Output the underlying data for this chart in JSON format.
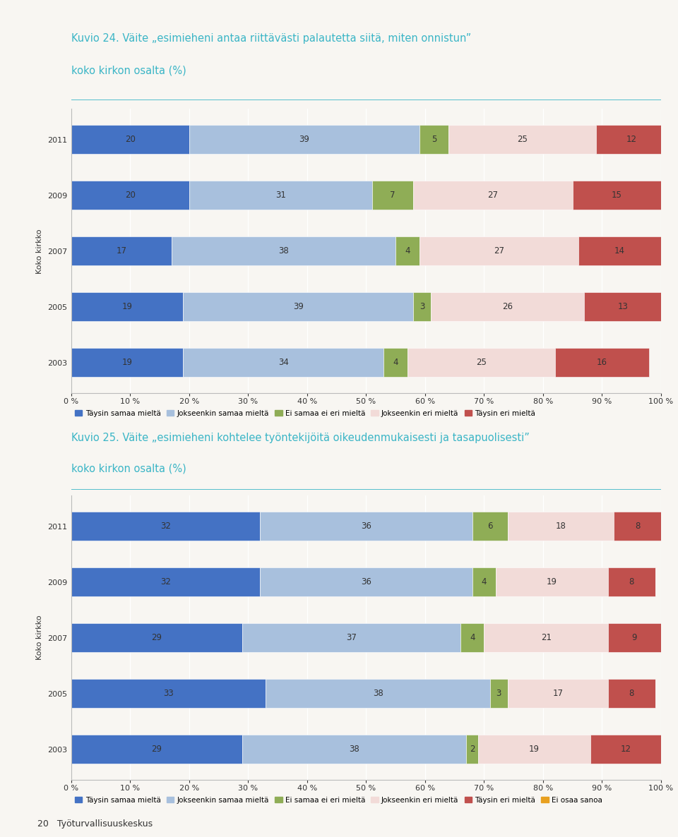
{
  "chart1": {
    "title_line1": "Kuvio 24. Väite „esimieheni antaa riittävästi palautetta siitä, miten onnistun”",
    "title_line2": "koko kirkon osalta (%)",
    "ylabel": "Koko kirkko",
    "years": [
      2011,
      2009,
      2007,
      2005,
      2003
    ],
    "data": {
      "Täysin samaa mieltä": [
        20,
        20,
        17,
        19,
        19
      ],
      "Jokseenkin samaa mieltä": [
        39,
        31,
        38,
        39,
        34
      ],
      "Ei samaa ei eri mieltä": [
        5,
        7,
        4,
        3,
        4
      ],
      "Jokseenkin eri mieltä": [
        25,
        27,
        27,
        26,
        25
      ],
      "Täysin eri mieltä": [
        12,
        15,
        14,
        13,
        16
      ]
    },
    "colors": {
      "Täysin samaa mieltä": "#4472c4",
      "Jokseenkin samaa mieltä": "#a8c0dd",
      "Ei samaa ei eri mieltä": "#8fad56",
      "Jokseenkin eri mieltä": "#f2dbd8",
      "Täysin eri mieltä": "#c0504d"
    },
    "legend_order": [
      "Täysin samaa mieltä",
      "Jokseenkin samaa mieltä",
      "Ei samaa ei eri mieltä",
      "Jokseenkin eri mieltä",
      "Täysin eri mieltä"
    ]
  },
  "chart2": {
    "title_line1": "Kuvio 25. Väite „esimieheni kohtelee työntekijöitä oikeudenmukaisesti ja tasapuolisesti”",
    "title_line2": "koko kirkon osalta (%)",
    "ylabel": "Koko kirkko",
    "years": [
      2011,
      2009,
      2007,
      2005,
      2003
    ],
    "data": {
      "Täysin samaa mieltä": [
        32,
        32,
        29,
        33,
        29
      ],
      "Jokseenkin samaa mieltä": [
        36,
        36,
        37,
        38,
        38
      ],
      "Ei samaa ei eri mieltä": [
        6,
        4,
        4,
        3,
        2
      ],
      "Jokseenkin eri mieltä": [
        18,
        19,
        21,
        17,
        19
      ],
      "Täysin eri mieltä": [
        8,
        8,
        9,
        8,
        12
      ],
      "Ei osaa sanoa": [
        0,
        0,
        0,
        0,
        0
      ]
    },
    "colors": {
      "Täysin samaa mieltä": "#4472c4",
      "Jokseenkin samaa mieltä": "#a8c0dd",
      "Ei samaa ei eri mieltä": "#8fad56",
      "Jokseenkin eri mieltä": "#f2dbd8",
      "Täysin eri mieltä": "#c0504d",
      "Ei osaa sanoa": "#e8a020"
    },
    "legend_order": [
      "Täysin samaa mieltä",
      "Jokseenkin samaa mieltä",
      "Ei samaa ei eri mieltä",
      "Jokseenkin eri mieltä",
      "Täysin eri mieltä",
      "Ei osaa sanoa"
    ]
  },
  "background_color": "#f8f6f2",
  "title_color": "#3ab5c6",
  "text_color": "#333333",
  "bar_height": 0.52,
  "font_size_title": 10.5,
  "font_size_labels": 8.5,
  "font_size_ticks": 8.0,
  "font_size_legend": 7.5,
  "footer": "20   Työturvallisuuskeskus"
}
